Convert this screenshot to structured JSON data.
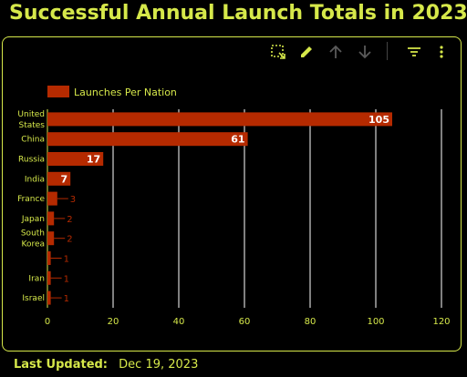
{
  "title": "Successful Annual Launch Totals in 2023",
  "footer": {
    "label": "Last Updated:",
    "value": "Dec 19, 2023"
  },
  "toolbar": {
    "icons": [
      "selection-zoom-icon",
      "pencil-icon",
      "arrow-up-icon",
      "arrow-down-icon",
      "filter-icon",
      "more-vert-icon"
    ]
  },
  "colors": {
    "accent": "#d6e84a",
    "bar": "#b52a00",
    "background": "#000000",
    "grid": "#ffffff"
  },
  "chart_data": {
    "type": "bar",
    "orientation": "horizontal",
    "categories": [
      "United States",
      "China",
      "Russia",
      "India",
      "France",
      "Japan",
      "South Korea",
      "",
      "Iran",
      "Israel"
    ],
    "series": [
      {
        "name": "Launches Per Nation",
        "values": [
          105,
          61,
          17,
          7,
          3,
          2,
          2,
          1,
          1,
          1
        ]
      }
    ],
    "xlim": [
      0,
      120
    ],
    "x_ticks": [
      "0",
      "20",
      "40",
      "60",
      "80",
      "100",
      "120"
    ],
    "grid": true,
    "legend": "top-left",
    "title": "",
    "xlabel": "",
    "ylabel": ""
  }
}
